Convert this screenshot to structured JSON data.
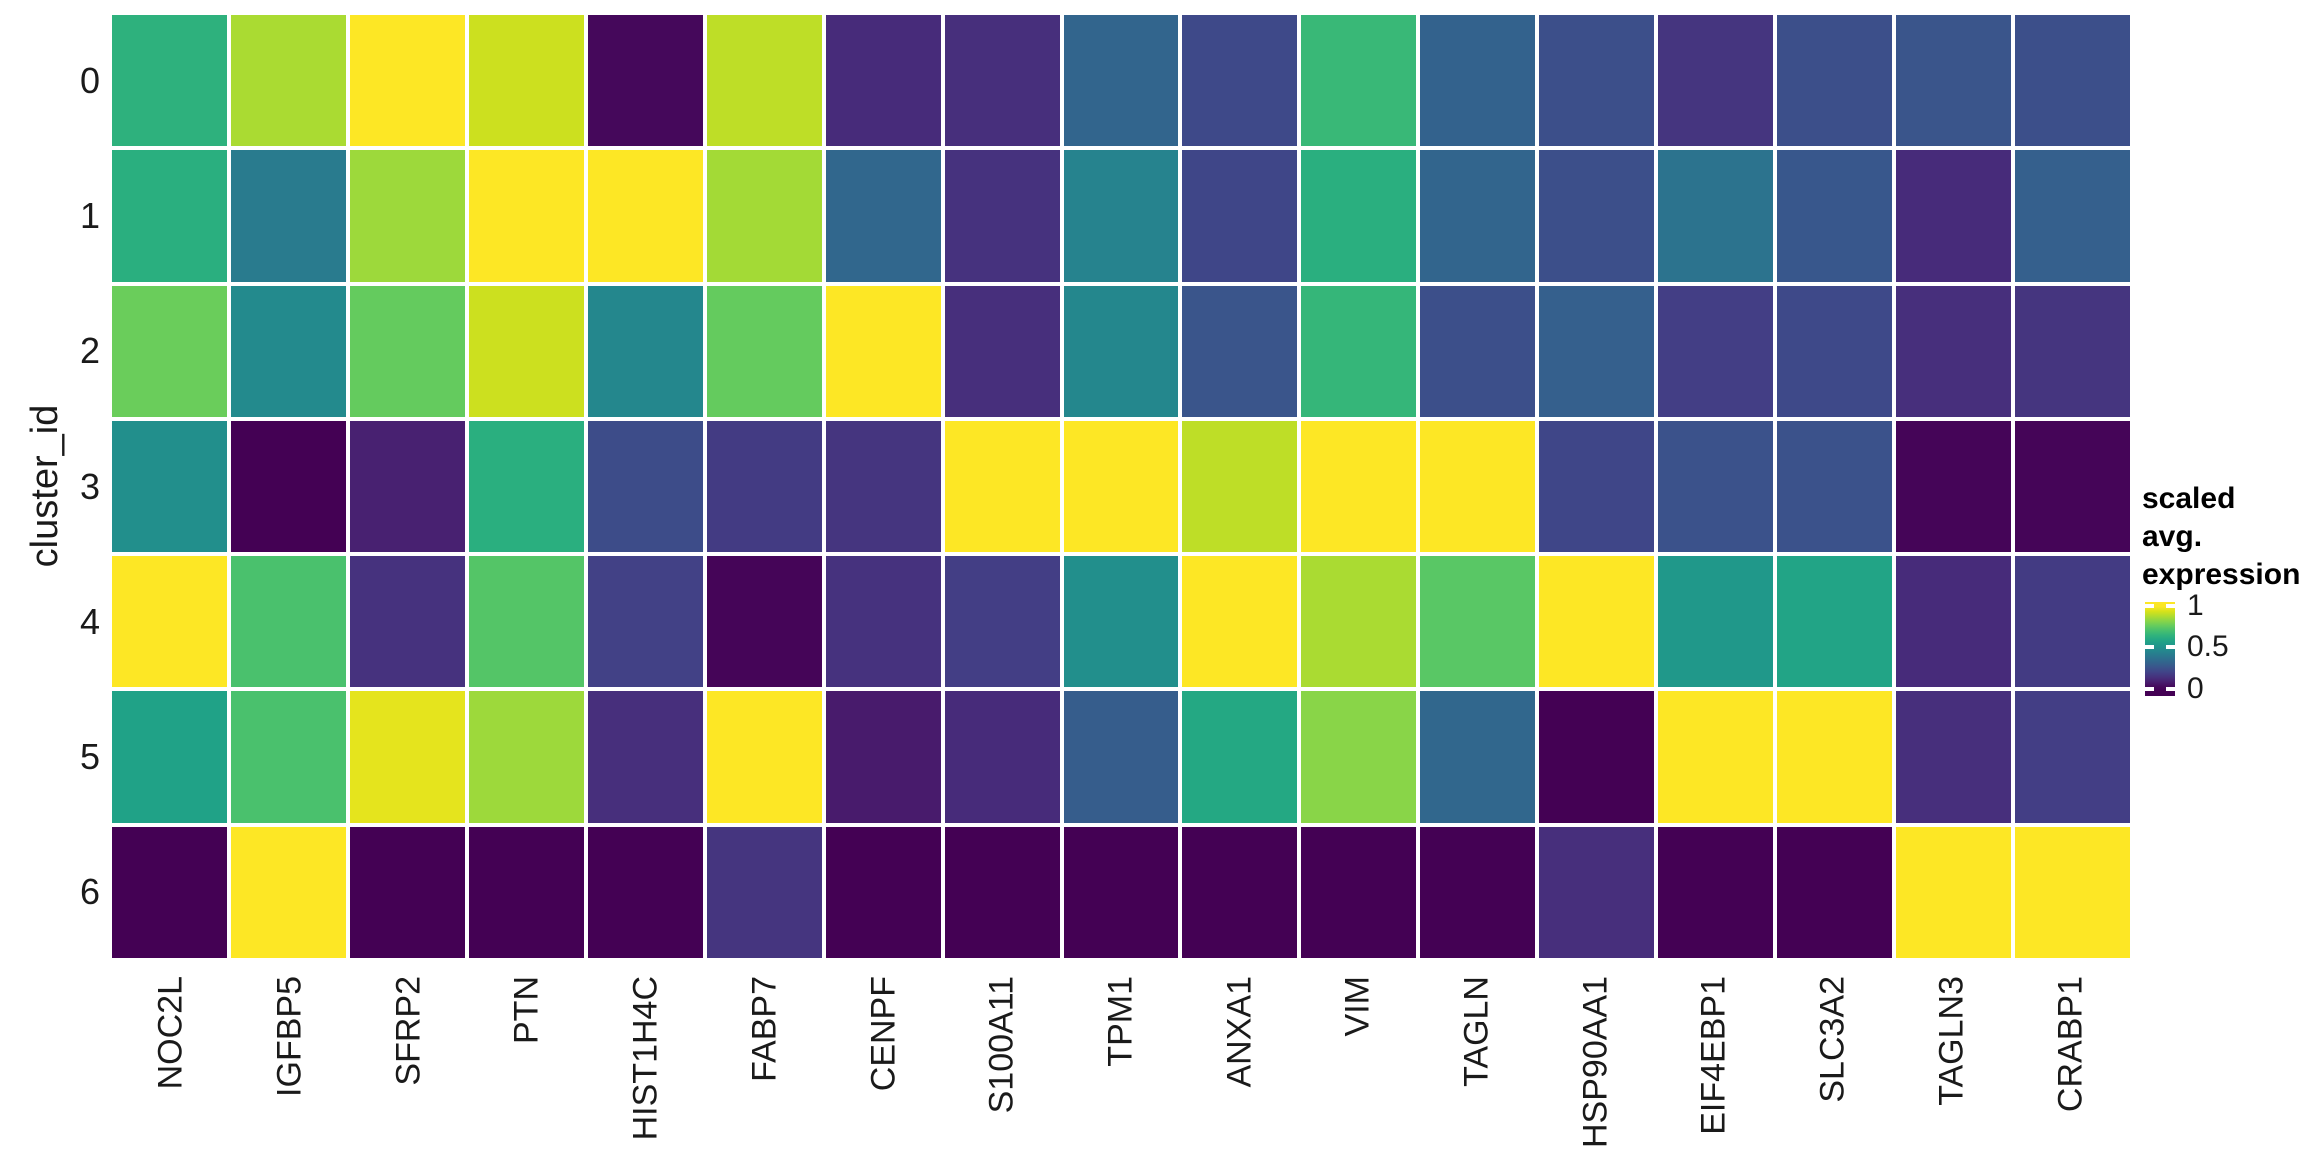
{
  "chart_data": {
    "type": "heatmap",
    "title": "",
    "xlabel": "",
    "ylabel": "cluster_id",
    "x_categories": [
      "NOC2L",
      "IGFBP5",
      "SFRP2",
      "PTN",
      "HIST1H4C",
      "FABP7",
      "CENPF",
      "S100A11",
      "TPM1",
      "ANXA1",
      "VIM",
      "TAGLN",
      "HSP90AA1",
      "EIF4EBP1",
      "SLC3A2",
      "TAGLN3",
      "CRABP1"
    ],
    "y_categories": [
      "0",
      "1",
      "2",
      "3",
      "4",
      "5",
      "6"
    ],
    "values": [
      [
        0.64,
        0.87,
        1.0,
        0.92,
        0.02,
        0.9,
        0.12,
        0.13,
        0.32,
        0.22,
        0.67,
        0.31,
        0.24,
        0.15,
        0.24,
        0.26,
        0.24
      ],
      [
        0.63,
        0.41,
        0.85,
        1.0,
        1.0,
        0.86,
        0.33,
        0.14,
        0.44,
        0.21,
        0.63,
        0.32,
        0.24,
        0.38,
        0.27,
        0.12,
        0.3
      ],
      [
        0.77,
        0.47,
        0.76,
        0.92,
        0.46,
        0.76,
        1.0,
        0.13,
        0.46,
        0.26,
        0.66,
        0.24,
        0.3,
        0.18,
        0.22,
        0.13,
        0.15
      ],
      [
        0.49,
        0.0,
        0.09,
        0.63,
        0.23,
        0.17,
        0.15,
        1.0,
        1.0,
        0.9,
        1.0,
        1.0,
        0.21,
        0.25,
        0.25,
        0.01,
        0.01
      ],
      [
        1.0,
        0.71,
        0.14,
        0.73,
        0.19,
        0.01,
        0.14,
        0.18,
        0.49,
        1.0,
        0.87,
        0.74,
        1.0,
        0.53,
        0.58,
        0.12,
        0.17
      ],
      [
        0.57,
        0.71,
        0.96,
        0.85,
        0.13,
        1.0,
        0.07,
        0.12,
        0.29,
        0.6,
        0.82,
        0.33,
        0.0,
        1.0,
        1.0,
        0.13,
        0.18
      ],
      [
        0.0,
        1.0,
        0.0,
        0.0,
        0.0,
        0.15,
        0.0,
        0.0,
        0.0,
        0.0,
        0.0,
        0.0,
        0.13,
        0.0,
        0.0,
        1.0,
        1.0
      ]
    ],
    "value_range": [
      0,
      1
    ],
    "colormap": "viridis",
    "viridis_stops": [
      [
        0.0,
        "#440154"
      ],
      [
        0.0625,
        "#48186a"
      ],
      [
        0.125,
        "#472d7b"
      ],
      [
        0.1875,
        "#424086"
      ],
      [
        0.25,
        "#3b528b"
      ],
      [
        0.3125,
        "#33638d"
      ],
      [
        0.375,
        "#2c728e"
      ],
      [
        0.4375,
        "#26828e"
      ],
      [
        0.5,
        "#21918c"
      ],
      [
        0.5625,
        "#1fa088"
      ],
      [
        0.625,
        "#28ae80"
      ],
      [
        0.6875,
        "#3fbc73"
      ],
      [
        0.75,
        "#5ec962"
      ],
      [
        0.8125,
        "#84d44b"
      ],
      [
        0.875,
        "#addc30"
      ],
      [
        0.9375,
        "#d8e219"
      ],
      [
        1.0,
        "#fde725"
      ]
    ],
    "grid": false,
    "legend": {
      "position": "right",
      "title_lines": [
        "scaled avg.",
        "expression"
      ],
      "ticks": [
        {
          "label": "1",
          "value": 1.0
        },
        {
          "label": "0.5",
          "value": 0.5
        },
        {
          "label": "0",
          "value": 0.0
        }
      ],
      "bar_value_top": 1.05,
      "bar_value_bottom": -0.09
    },
    "colors": {
      "background": "#ffffff",
      "tile_gap": "#ffffff",
      "axis_text": "#1a1a1a",
      "legend_title_text": "#000000",
      "viridis_min": "#440154",
      "viridis_mid": "#21918c",
      "viridis_max": "#fde725"
    }
  }
}
